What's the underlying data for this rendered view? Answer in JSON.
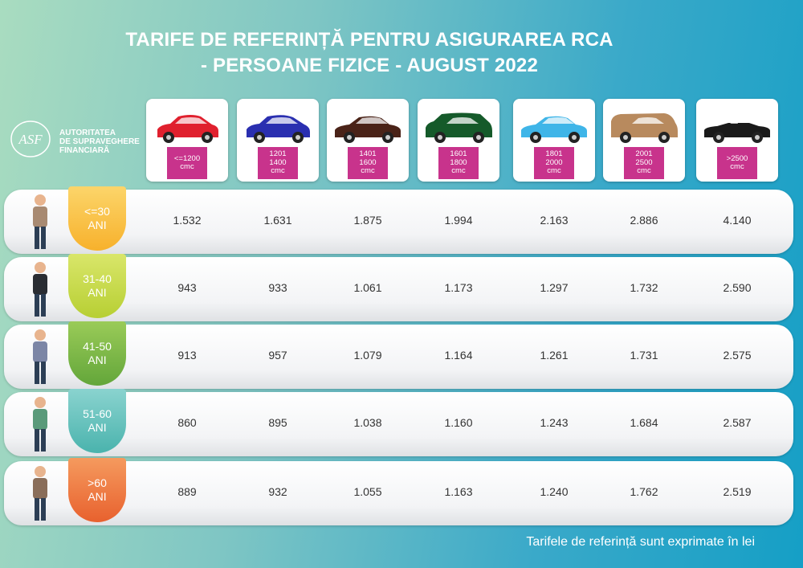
{
  "header": {
    "title_lines": [
      "TARIFE DE REFERINȚĂ PENTRU ASIGURAREA RCA",
      "- PERSOANE FIZICE - AUGUST 2022"
    ]
  },
  "logo": {
    "mark": "ASF",
    "lines": [
      "AUTORITATEA",
      "DE SUPRAVEGHERE",
      "FINANCIARĂ"
    ]
  },
  "table": {
    "columns": [
      {
        "lines": [
          "<=1200",
          "cmc"
        ]
      },
      {
        "lines": [
          "1201",
          "1400",
          "cmc"
        ]
      },
      {
        "lines": [
          "1401",
          "1600",
          "cmc"
        ]
      },
      {
        "lines": [
          "1601",
          "1800",
          "cmc"
        ]
      },
      {
        "lines": [
          "1801",
          "2000",
          "cmc"
        ]
      },
      {
        "lines": [
          "2001",
          "2500",
          "cmc"
        ]
      },
      {
        "lines": [
          ">2500",
          "cmc"
        ]
      }
    ],
    "rows": [
      {
        "age": [
          "<=30",
          "ANI"
        ],
        "values": [
          "1.532",
          "1.631",
          "1.875",
          "1.994",
          "2.163",
          "2.886",
          "4.140"
        ]
      },
      {
        "age": [
          "31-40",
          "ANI"
        ],
        "values": [
          "943",
          "933",
          "1.061",
          "1.173",
          "1.297",
          "1.732",
          "2.590"
        ]
      },
      {
        "age": [
          "41-50",
          "ANI"
        ],
        "values": [
          "913",
          "957",
          "1.079",
          "1.164",
          "1.261",
          "1.731",
          "2.575"
        ]
      },
      {
        "age": [
          "51-60",
          "ANI"
        ],
        "values": [
          "860",
          "895",
          "1.038",
          "1.160",
          "1.243",
          "1.684",
          "2.587"
        ]
      },
      {
        "age": [
          ">60",
          "ANI"
        ],
        "values": [
          "889",
          "932",
          "1.055",
          "1.163",
          "1.240",
          "1.762",
          "2.519"
        ]
      }
    ]
  },
  "footer": {
    "note": "Tarifele de referință sunt exprimate în lei"
  }
}
